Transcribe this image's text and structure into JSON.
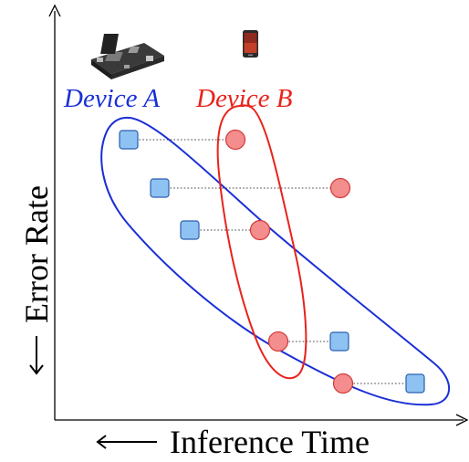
{
  "axes": {
    "x_label": "Inference Time",
    "y_label": "Error Rate"
  },
  "devices": [
    {
      "name": "Device A",
      "color": "#1a2fd6",
      "marker": "square",
      "marker_fill": "#8ec2f2",
      "marker_stroke": "#2a5fb0",
      "icon": "circuit-board-icon"
    },
    {
      "name": "Device B",
      "color": "#e8241c",
      "marker": "circle",
      "marker_fill": "#f48d8d",
      "marker_stroke": "#d43a3a",
      "icon": "smartphone-icon"
    }
  ],
  "colors": {
    "axis": "#000000",
    "connector": "#444444",
    "hull_a": "#1a2fd6",
    "hull_b": "#e8241c"
  }
}
